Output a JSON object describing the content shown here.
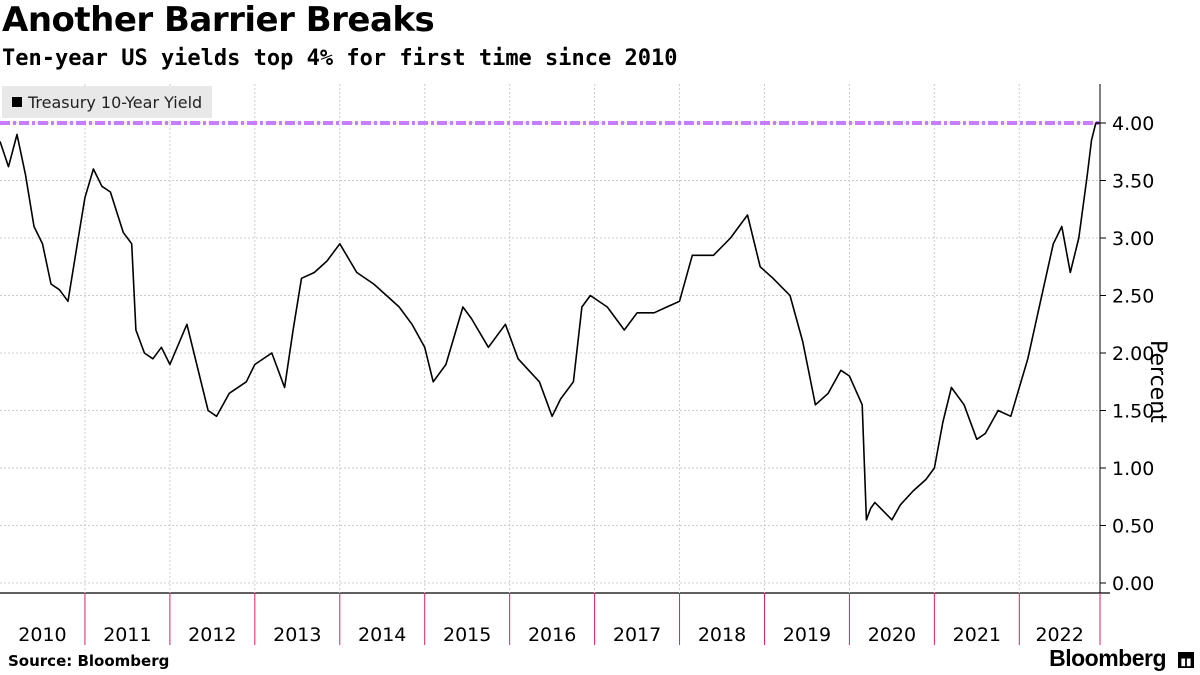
{
  "title": "Another Barrier Breaks",
  "subtitle": "Ten-year US yields top 4% for first time since 2010",
  "source": "Source: Bloomberg",
  "brand": "Bloomberg",
  "colors": {
    "line": "#000000",
    "threshold": "#c77dff",
    "grid": "#cccccc",
    "tick": "#e01e5a"
  },
  "chart_data": {
    "type": "line",
    "ylabel": "Percent",
    "ylim": [
      0,
      4.3
    ],
    "yticks": [
      "4.00",
      "3.50",
      "3.00",
      "2.50",
      "2.00",
      "1.50",
      "1.00",
      "0.50",
      "0.00"
    ],
    "ytick_values": [
      4.0,
      3.5,
      3.0,
      2.5,
      2.0,
      1.5,
      1.0,
      0.5,
      0.0
    ],
    "xlim": [
      2010.0,
      2022.95
    ],
    "xticks": [
      "2010",
      "2011",
      "2012",
      "2013",
      "2014",
      "2015",
      "2016",
      "2017",
      "2018",
      "2019",
      "2020",
      "2021",
      "2022"
    ],
    "grid": true,
    "reference_line": {
      "value": 4.0,
      "style": "dashed"
    },
    "legend": {
      "position": "top-left"
    },
    "series": [
      {
        "name": "Treasury 10-Year Yield",
        "x": [
          2010.0,
          2010.1,
          2010.2,
          2010.3,
          2010.4,
          2010.5,
          2010.6,
          2010.7,
          2010.8,
          2010.9,
          2011.0,
          2011.1,
          2011.2,
          2011.3,
          2011.45,
          2011.55,
          2011.6,
          2011.7,
          2011.8,
          2011.9,
          2012.0,
          2012.2,
          2012.35,
          2012.45,
          2012.55,
          2012.7,
          2012.9,
          2013.0,
          2013.2,
          2013.35,
          2013.45,
          2013.55,
          2013.7,
          2013.85,
          2014.0,
          2014.2,
          2014.4,
          2014.55,
          2014.7,
          2014.85,
          2015.0,
          2015.1,
          2015.25,
          2015.45,
          2015.55,
          2015.75,
          2015.95,
          2016.1,
          2016.35,
          2016.5,
          2016.6,
          2016.75,
          2016.85,
          2016.95,
          2017.15,
          2017.35,
          2017.5,
          2017.7,
          2017.85,
          2018.0,
          2018.15,
          2018.4,
          2018.6,
          2018.8,
          2018.95,
          2019.1,
          2019.3,
          2019.45,
          2019.6,
          2019.75,
          2019.9,
          2020.0,
          2020.15,
          2020.2,
          2020.25,
          2020.3,
          2020.5,
          2020.6,
          2020.75,
          2020.9,
          2021.0,
          2021.1,
          2021.2,
          2021.35,
          2021.5,
          2021.6,
          2021.75,
          2021.9,
          2022.0,
          2022.1,
          2022.25,
          2022.4,
          2022.5,
          2022.6,
          2022.7,
          2022.8,
          2022.85,
          2022.9,
          2022.95
        ],
        "y": [
          3.84,
          3.62,
          3.9,
          3.55,
          3.1,
          2.95,
          2.6,
          2.55,
          2.45,
          2.9,
          3.35,
          3.6,
          3.45,
          3.4,
          3.05,
          2.95,
          2.2,
          2.0,
          1.95,
          2.05,
          1.9,
          2.25,
          1.8,
          1.5,
          1.45,
          1.65,
          1.75,
          1.9,
          2.0,
          1.7,
          2.2,
          2.65,
          2.7,
          2.8,
          2.95,
          2.7,
          2.6,
          2.5,
          2.4,
          2.25,
          2.05,
          1.75,
          1.9,
          2.4,
          2.3,
          2.05,
          2.25,
          1.95,
          1.75,
          1.45,
          1.6,
          1.75,
          2.4,
          2.5,
          2.4,
          2.2,
          2.35,
          2.35,
          2.4,
          2.45,
          2.85,
          2.85,
          3.0,
          3.2,
          2.75,
          2.65,
          2.5,
          2.1,
          1.55,
          1.65,
          1.85,
          1.8,
          1.55,
          0.55,
          0.65,
          0.7,
          0.55,
          0.68,
          0.8,
          0.9,
          1.0,
          1.4,
          1.7,
          1.55,
          1.25,
          1.3,
          1.5,
          1.45,
          1.7,
          1.95,
          2.45,
          2.95,
          3.1,
          2.7,
          3.0,
          3.55,
          3.85,
          4.0,
          4.0
        ]
      }
    ]
  }
}
